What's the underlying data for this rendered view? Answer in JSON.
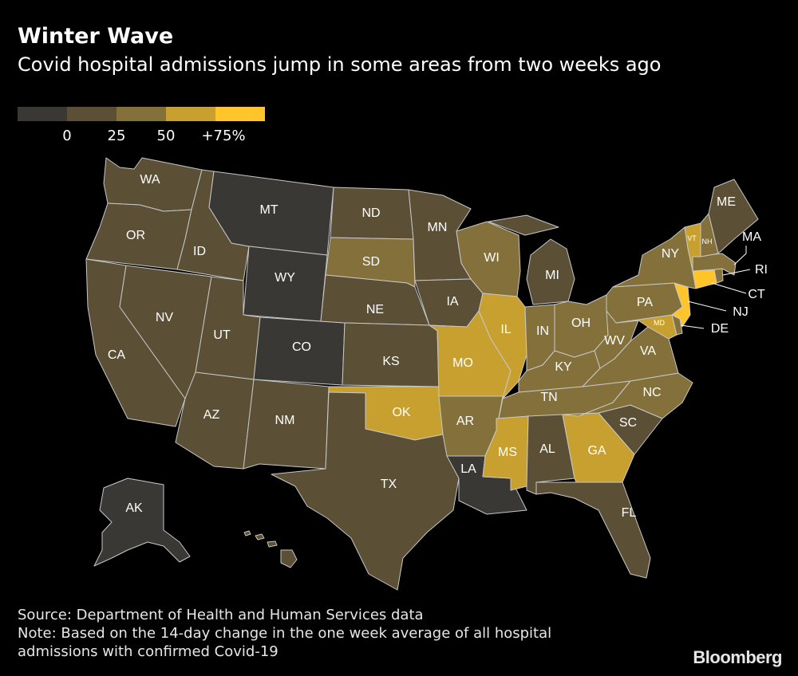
{
  "title": "Winter Wave",
  "subtitle": "Covid hospital admissions jump in some areas from two weeks ago",
  "legend": {
    "colors": [
      "#3a3835",
      "#5b4f35",
      "#84703a",
      "#c7a030",
      "#ffc52a"
    ],
    "ticks": [
      "0",
      "25",
      "50",
      "+75%"
    ]
  },
  "map": {
    "colors": {
      "neg": "#3a3835",
      "low": "#5b4f35",
      "mid": "#84703a",
      "high": "#c7a030",
      "top": "#ffc52a"
    },
    "states": [
      {
        "code": "WA",
        "bin": "low"
      },
      {
        "code": "OR",
        "bin": "low"
      },
      {
        "code": "CA",
        "bin": "low"
      },
      {
        "code": "NV",
        "bin": "low"
      },
      {
        "code": "ID",
        "bin": "low"
      },
      {
        "code": "MT",
        "bin": "neg"
      },
      {
        "code": "WY",
        "bin": "neg"
      },
      {
        "code": "UT",
        "bin": "low"
      },
      {
        "code": "CO",
        "bin": "neg"
      },
      {
        "code": "AZ",
        "bin": "low"
      },
      {
        "code": "NM",
        "bin": "low"
      },
      {
        "code": "ND",
        "bin": "low"
      },
      {
        "code": "SD",
        "bin": "mid"
      },
      {
        "code": "NE",
        "bin": "low"
      },
      {
        "code": "KS",
        "bin": "low"
      },
      {
        "code": "OK",
        "bin": "high"
      },
      {
        "code": "TX",
        "bin": "low"
      },
      {
        "code": "MN",
        "bin": "low"
      },
      {
        "code": "IA",
        "bin": "low"
      },
      {
        "code": "MO",
        "bin": "high"
      },
      {
        "code": "AR",
        "bin": "mid"
      },
      {
        "code": "LA",
        "bin": "neg"
      },
      {
        "code": "WI",
        "bin": "mid"
      },
      {
        "code": "IL",
        "bin": "high"
      },
      {
        "code": "MI",
        "bin": "low"
      },
      {
        "code": "IN",
        "bin": "mid"
      },
      {
        "code": "OH",
        "bin": "mid"
      },
      {
        "code": "KY",
        "bin": "mid"
      },
      {
        "code": "TN",
        "bin": "mid"
      },
      {
        "code": "MS",
        "bin": "high"
      },
      {
        "code": "AL",
        "bin": "low"
      },
      {
        "code": "GA",
        "bin": "high"
      },
      {
        "code": "FL",
        "bin": "low"
      },
      {
        "code": "SC",
        "bin": "low"
      },
      {
        "code": "NC",
        "bin": "mid"
      },
      {
        "code": "VA",
        "bin": "mid"
      },
      {
        "code": "WV",
        "bin": "mid"
      },
      {
        "code": "PA",
        "bin": "mid"
      },
      {
        "code": "NY",
        "bin": "mid"
      },
      {
        "code": "VT",
        "bin": "high"
      },
      {
        "code": "NH",
        "bin": "mid"
      },
      {
        "code": "ME",
        "bin": "low"
      },
      {
        "code": "MA",
        "bin": "mid"
      },
      {
        "code": "RI",
        "bin": "mid"
      },
      {
        "code": "CT",
        "bin": "top"
      },
      {
        "code": "NJ",
        "bin": "top"
      },
      {
        "code": "DE",
        "bin": "mid"
      },
      {
        "code": "MD",
        "bin": "high"
      },
      {
        "code": "AK",
        "bin": "neg"
      },
      {
        "code": "HI",
        "bin": "low"
      }
    ]
  },
  "footer": {
    "source": "Source: Department of Health and Human Services data",
    "note1": "Note: Based on the 14-day change in the one week average of all hospital",
    "note2": "admissions with confirmed Covid-19"
  },
  "logo": "Bloomberg"
}
